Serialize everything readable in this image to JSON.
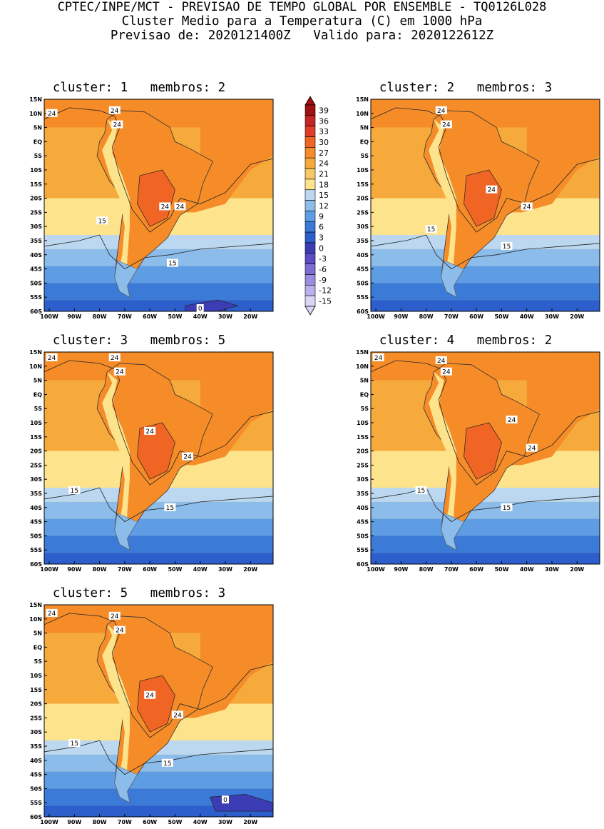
{
  "header": {
    "line1": "CPTEC/INPE/MCT - PREVISAO DE TEMPO GLOBAL POR ENSEMBLE - TQ0126L028",
    "line2": "Cluster Medio para a Temperatura (C) em 1000 hPa",
    "line3": "Previsao de: 2020121400Z   Valido para: 2020122612Z"
  },
  "map_axes": {
    "lat_labels": [
      "15N",
      "10N",
      "5N",
      "EQ",
      "5S",
      "10S",
      "15S",
      "20S",
      "25S",
      "30S",
      "35S",
      "40S",
      "45S",
      "50S",
      "55S",
      "60S"
    ],
    "lon_labels": [
      "100W",
      "90W",
      "80W",
      "70W",
      "60W",
      "50W",
      "40W",
      "30W",
      "20W"
    ]
  },
  "colorbar": {
    "labels": [
      "39",
      "36",
      "33",
      "30",
      "27",
      "24",
      "21",
      "18",
      "15",
      "12",
      "9",
      "6",
      "3",
      "0",
      "-3",
      "-6",
      "-9",
      "-12",
      "-15"
    ],
    "colors": [
      "#a01010",
      "#c42424",
      "#e03c28",
      "#f06424",
      "#f58c28",
      "#f7aa3c",
      "#f8c864",
      "#fce38c",
      "#bcd8f0",
      "#8cbcea",
      "#5e9ce4",
      "#3c7ad8",
      "#2c5ecc",
      "#3c3cb4",
      "#5c4cc4",
      "#7c6cd4",
      "#9c8ce0",
      "#bcb0ec",
      "#dcd4f6"
    ]
  },
  "panels": [
    {
      "title": "cluster: 1   membros: 2",
      "labels": [
        {
          "text": "24",
          "lon": -99,
          "lat": 10
        },
        {
          "text": "24",
          "lon": -74,
          "lat": 11
        },
        {
          "text": "24",
          "lon": -73,
          "lat": 6
        },
        {
          "text": "24",
          "lon": -54,
          "lat": -23
        },
        {
          "text": "24",
          "lon": -48,
          "lat": -23
        },
        {
          "text": "15",
          "lon": -79,
          "lat": -28
        },
        {
          "text": "15",
          "lon": -51,
          "lat": -43
        },
        {
          "text": "0",
          "lon": -40,
          "lat": -59
        }
      ]
    },
    {
      "title": "cluster: 2   membros: 3",
      "labels": [
        {
          "text": "24",
          "lon": -74,
          "lat": 11
        },
        {
          "text": "24",
          "lon": -72,
          "lat": 6
        },
        {
          "text": "24",
          "lon": -54,
          "lat": -17
        },
        {
          "text": "24",
          "lon": -40,
          "lat": -23
        },
        {
          "text": "15",
          "lon": -78,
          "lat": -31
        },
        {
          "text": "15",
          "lon": -48,
          "lat": -37
        }
      ]
    },
    {
      "title": "cluster: 3   membros: 5",
      "labels": [
        {
          "text": "24",
          "lon": -99,
          "lat": 13
        },
        {
          "text": "24",
          "lon": -74,
          "lat": 13
        },
        {
          "text": "24",
          "lon": -72,
          "lat": 8
        },
        {
          "text": "24",
          "lon": -60,
          "lat": -13
        },
        {
          "text": "24",
          "lon": -45,
          "lat": -22
        },
        {
          "text": "15",
          "lon": -90,
          "lat": -34
        },
        {
          "text": "15",
          "lon": -52,
          "lat": -40
        }
      ]
    },
    {
      "title": "cluster: 4   membros: 2",
      "labels": [
        {
          "text": "24",
          "lon": -99,
          "lat": 13
        },
        {
          "text": "24",
          "lon": -74,
          "lat": 12
        },
        {
          "text": "24",
          "lon": -72,
          "lat": 8
        },
        {
          "text": "24",
          "lon": -46,
          "lat": -9
        },
        {
          "text": "24",
          "lon": -38,
          "lat": -19
        },
        {
          "text": "15",
          "lon": -82,
          "lat": -34
        },
        {
          "text": "15",
          "lon": -48,
          "lat": -40
        }
      ]
    },
    {
      "title": "cluster: 5   membros: 3",
      "labels": [
        {
          "text": "24",
          "lon": -99,
          "lat": 12
        },
        {
          "text": "24",
          "lon": -74,
          "lat": 11
        },
        {
          "text": "24",
          "lon": -72,
          "lat": 6
        },
        {
          "text": "24",
          "lon": -60,
          "lat": -17
        },
        {
          "text": "24",
          "lon": -49,
          "lat": -24
        },
        {
          "text": "15",
          "lon": -90,
          "lat": -34
        },
        {
          "text": "15",
          "lon": -53,
          "lat": -41
        },
        {
          "text": "0",
          "lon": -30,
          "lat": -54
        }
      ]
    }
  ]
}
